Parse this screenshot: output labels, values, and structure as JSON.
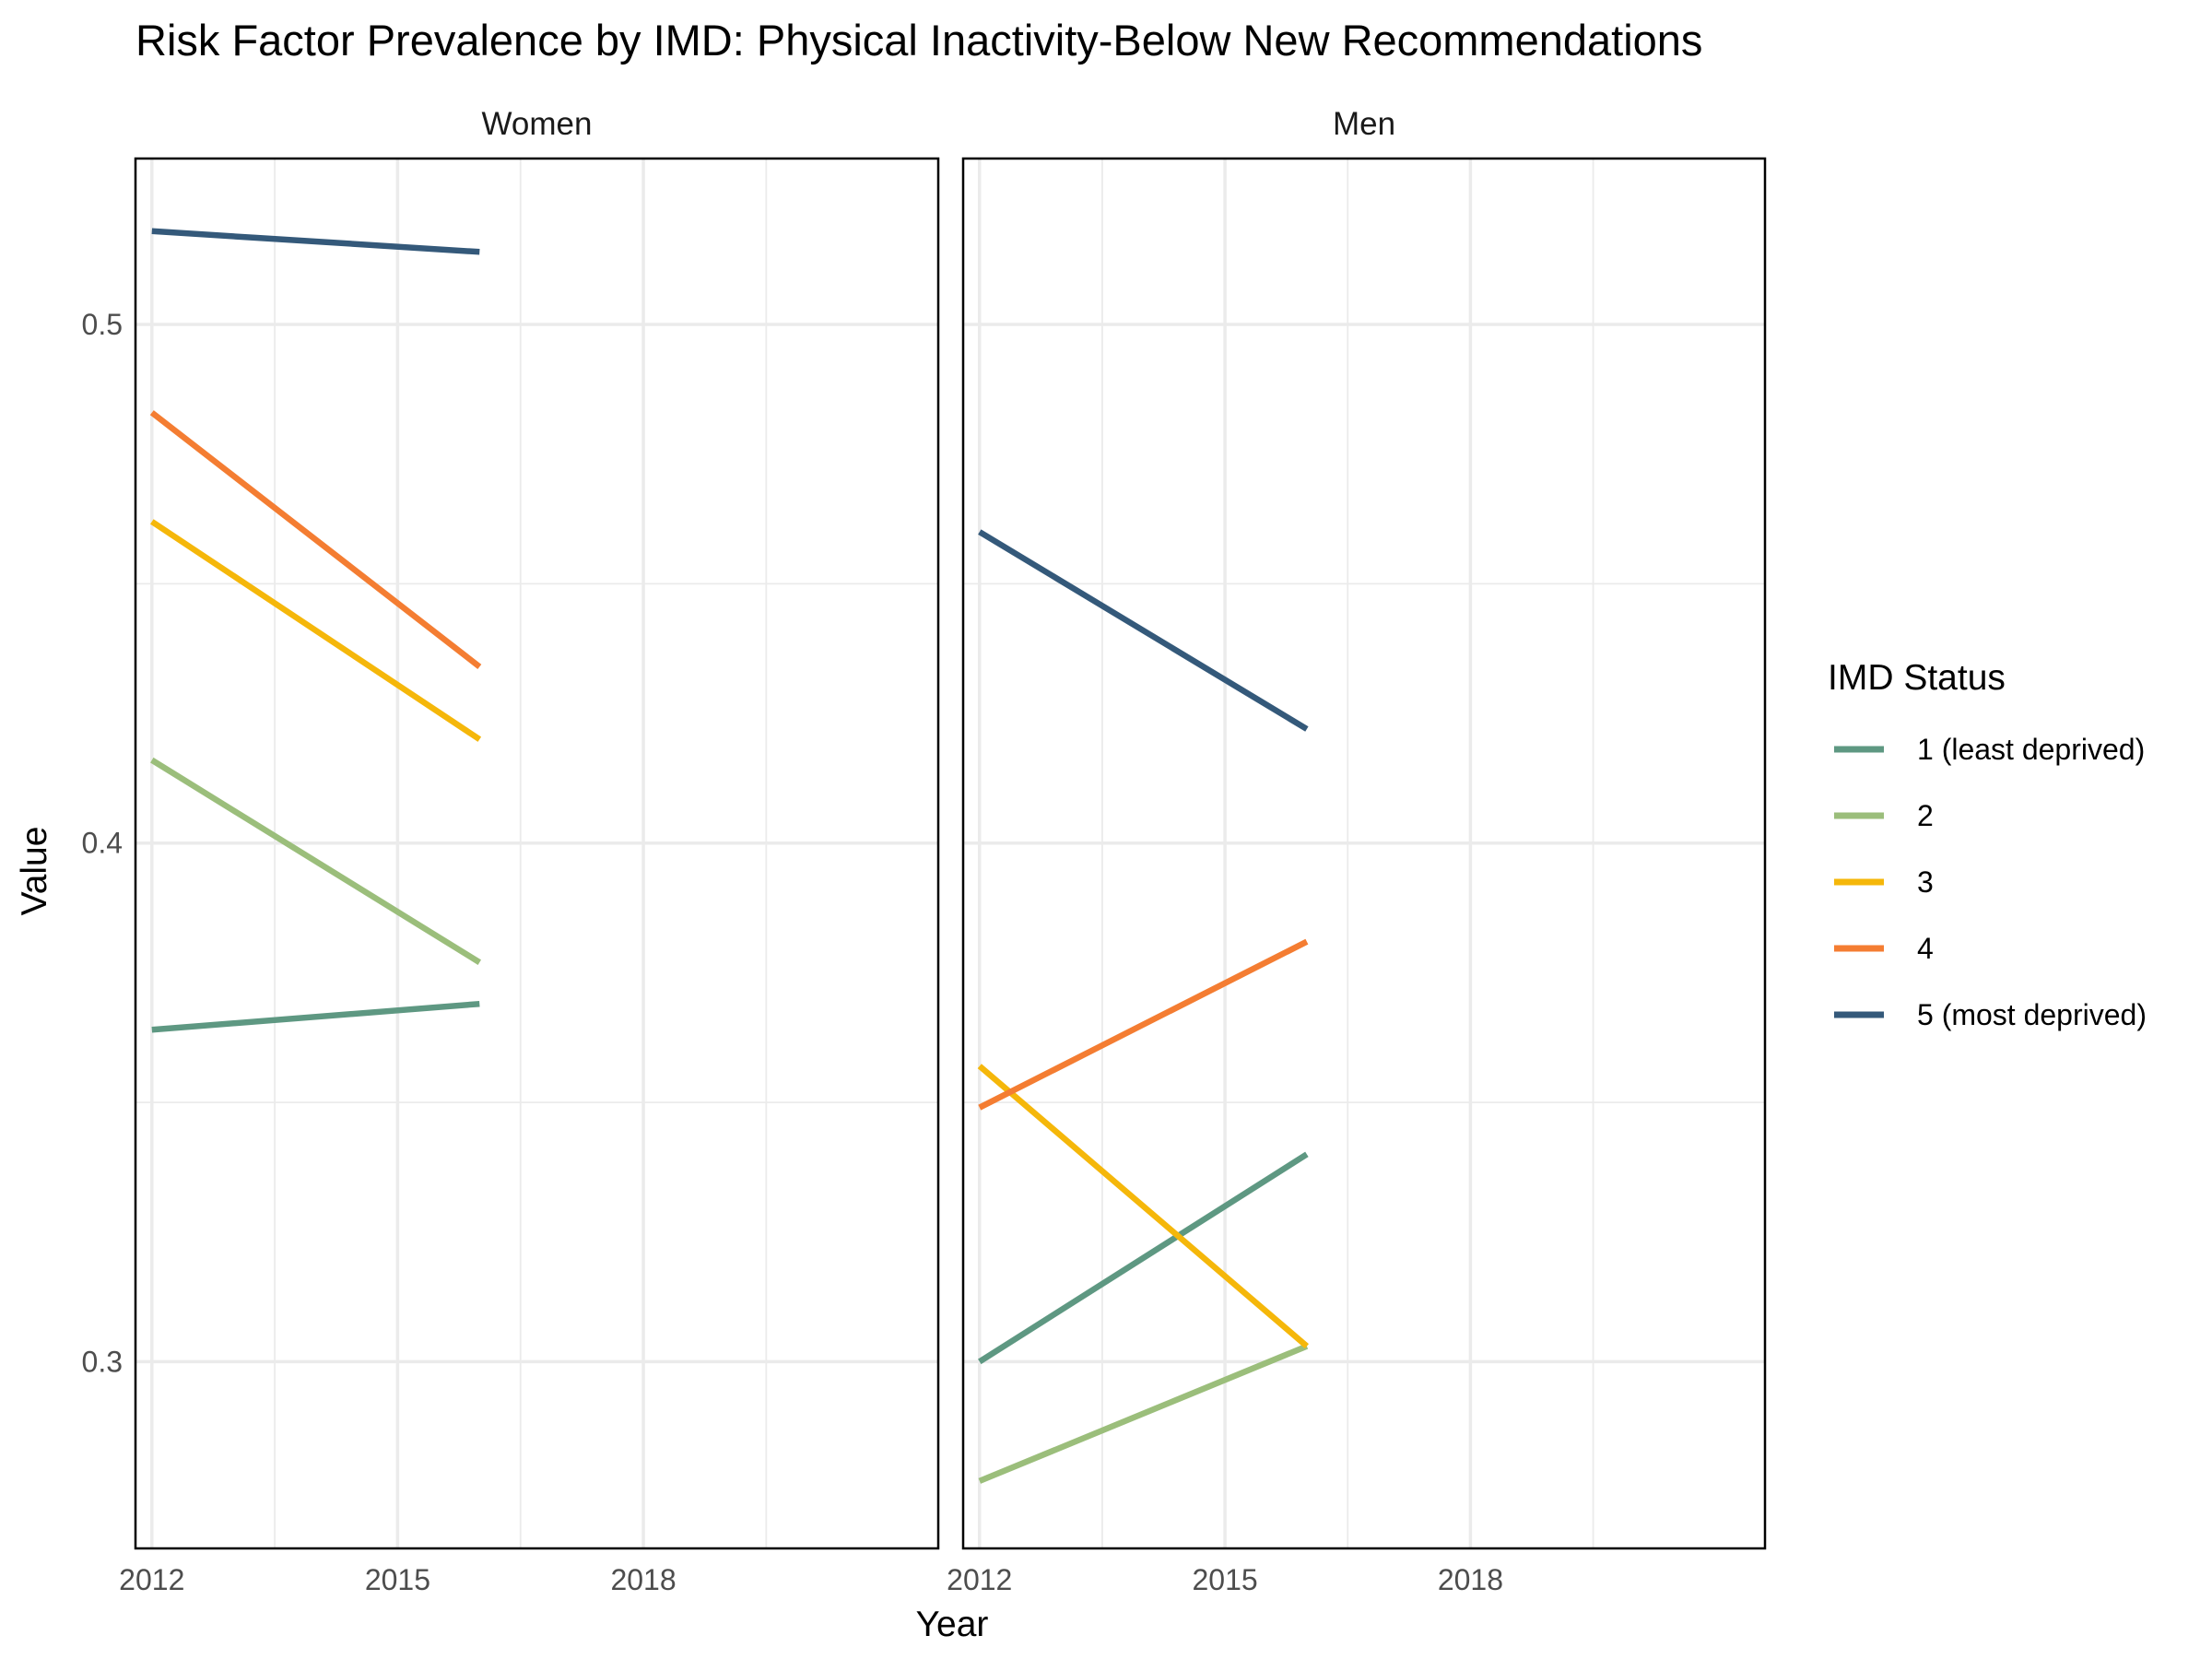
{
  "chart_data": {
    "type": "line",
    "title": "Risk Factor Prevalence by IMD: Physical Inactivity-Below New Recommendations",
    "xlabel": "Year",
    "ylabel": "Value",
    "xlim": [
      2011.8,
      2021.6
    ],
    "ylim": [
      0.264,
      0.532
    ],
    "x_ticks": [
      2012,
      2015,
      2018
    ],
    "x_tick_labels": [
      "2012",
      "2015",
      "2018"
    ],
    "y_ticks": [
      0.3,
      0.4,
      0.5
    ],
    "y_tick_labels": [
      "0.3",
      "0.4",
      "0.5"
    ],
    "grid": true,
    "legend": {
      "title": "IMD Status",
      "position": "right",
      "entries": [
        {
          "label": "1 (least deprived)",
          "color": "#5e9882"
        },
        {
          "label": "2",
          "color": "#9bbe7b"
        },
        {
          "label": "3",
          "color": "#f5b70a"
        },
        {
          "label": "4",
          "color": "#f47d32"
        },
        {
          "label": "5 (most deprived)",
          "color": "#34597a"
        }
      ]
    },
    "panels": [
      {
        "strip": "Women",
        "series": [
          {
            "group": "1 (least deprived)",
            "x": [
              2012,
              2016
            ],
            "y": [
              0.364,
              0.369
            ]
          },
          {
            "group": "2",
            "x": [
              2012,
              2016
            ],
            "y": [
              0.416,
              0.377
            ]
          },
          {
            "group": "3",
            "x": [
              2012,
              2016
            ],
            "y": [
              0.462,
              0.42
            ]
          },
          {
            "group": "4",
            "x": [
              2012,
              2016
            ],
            "y": [
              0.483,
              0.434
            ]
          },
          {
            "group": "5 (most deprived)",
            "x": [
              2012,
              2016
            ],
            "y": [
              0.518,
              0.514
            ]
          }
        ]
      },
      {
        "strip": "Men",
        "series": [
          {
            "group": "1 (least deprived)",
            "x": [
              2012,
              2016
            ],
            "y": [
              0.3,
              0.34
            ]
          },
          {
            "group": "2",
            "x": [
              2012,
              2016
            ],
            "y": [
              0.277,
              0.303
            ]
          },
          {
            "group": "3",
            "x": [
              2012,
              2016
            ],
            "y": [
              0.357,
              0.303
            ]
          },
          {
            "group": "4",
            "x": [
              2012,
              2016
            ],
            "y": [
              0.349,
              0.381
            ]
          },
          {
            "group": "5 (most deprived)",
            "x": [
              2012,
              2016
            ],
            "y": [
              0.46,
              0.422
            ]
          }
        ]
      }
    ]
  }
}
